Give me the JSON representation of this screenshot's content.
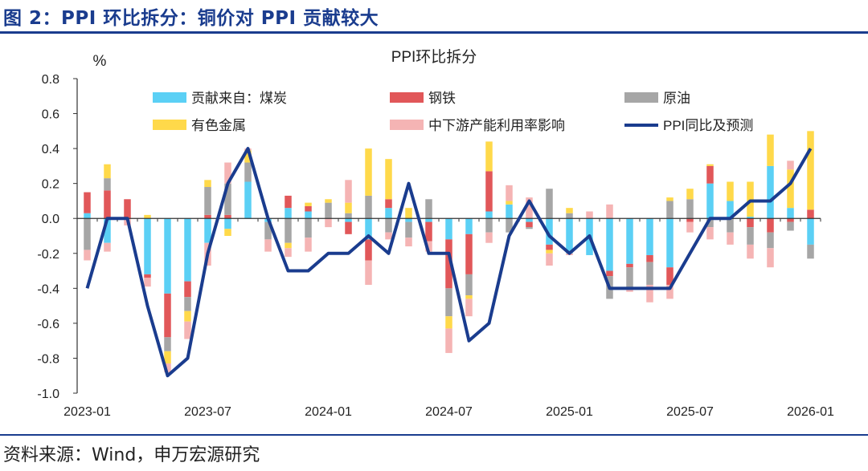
{
  "header": {
    "title": "图 2：PPI 环比拆分：铜价对 PPI 贡献较大"
  },
  "footer": {
    "source": "资料来源：Wind，申万宏源研究"
  },
  "colors": {
    "coal": "#5bd0f5",
    "steel": "#e15759",
    "oil": "#a6a6a6",
    "nonferrous": "#ffd94a",
    "capacity": "#f5b4b4",
    "ppi_line": "#1a3c8e",
    "rule": "#1a3c8e"
  },
  "chart_data": {
    "type": "bar",
    "stacked": true,
    "title": "PPI环比拆分",
    "ylabel": "%",
    "xlabel": "",
    "ylim": [
      -1.0,
      0.8
    ],
    "yticks": [
      "0.8",
      "0.6",
      "0.4",
      "0.2",
      "0.0",
      "-0.2",
      "-0.4",
      "-0.6",
      "-0.8",
      "-1.0"
    ],
    "grid": false,
    "legend_position": "top",
    "x_tick_labels": [
      {
        "index": 0,
        "label": "2023-01"
      },
      {
        "index": 6,
        "label": "2023-07"
      },
      {
        "index": 12,
        "label": "2024-01"
      },
      {
        "index": 18,
        "label": "2024-07"
      },
      {
        "index": 24,
        "label": "2025-01"
      },
      {
        "index": 30,
        "label": "2025-07"
      },
      {
        "index": 36,
        "label": "2026-01"
      }
    ],
    "categories": [
      "2023-01",
      "2023-02",
      "2023-03",
      "2023-04",
      "2023-05",
      "2023-06",
      "2023-07",
      "2023-08",
      "2023-09",
      "2023-10",
      "2023-11",
      "2023-12",
      "2024-01",
      "2024-02",
      "2024-03",
      "2024-04",
      "2024-05",
      "2024-06",
      "2024-07",
      "2024-08",
      "2024-09",
      "2024-10",
      "2024-11",
      "2024-12",
      "2025-01",
      "2025-02",
      "2025-03",
      "2025-04",
      "2025-05",
      "2025-06",
      "2025-07",
      "2025-08",
      "2025-09",
      "2025-10",
      "2025-11",
      "2025-12",
      "2026-01"
    ],
    "series": [
      {
        "name": "贡献来自：煤炭",
        "color_key": "coal",
        "values": [
          0.03,
          -0.14,
          0.0,
          -0.32,
          -0.43,
          -0.36,
          -0.14,
          -0.06,
          0.21,
          -0.02,
          0.06,
          0.04,
          0.0,
          -0.02,
          -0.12,
          0.06,
          -0.02,
          -0.02,
          -0.12,
          -0.09,
          0.04,
          0.08,
          -0.02,
          -0.15,
          -0.2,
          -0.21,
          -0.3,
          -0.26,
          -0.21,
          -0.28,
          0.0,
          0.2,
          0.1,
          0.01,
          0.3,
          0.06,
          -0.15
        ]
      },
      {
        "name": "钢铁",
        "color_key": "steel",
        "values": [
          0.12,
          0.16,
          0.11,
          -0.02,
          -0.25,
          -0.09,
          0.02,
          0.02,
          0.0,
          0.0,
          0.07,
          0.03,
          0.0,
          -0.07,
          -0.12,
          0.05,
          0.0,
          -0.11,
          -0.28,
          -0.23,
          0.23,
          0.0,
          -0.03,
          -0.03,
          0.0,
          0.0,
          -0.03,
          -0.02,
          -0.04,
          -0.1,
          -0.02,
          0.1,
          0.0,
          -0.05,
          -0.08,
          -0.02,
          0.05
        ]
      },
      {
        "name": "原油",
        "color_key": "oil",
        "values": [
          -0.18,
          0.07,
          0.0,
          0.0,
          -0.08,
          -0.08,
          0.16,
          0.18,
          0.11,
          -0.1,
          -0.14,
          -0.11,
          0.09,
          0.03,
          0.13,
          -0.08,
          -0.09,
          0.11,
          -0.16,
          -0.12,
          -0.08,
          -0.08,
          -0.01,
          0.17,
          0.03,
          0.0,
          -0.13,
          -0.12,
          -0.13,
          0.1,
          0.11,
          -0.05,
          -0.08,
          -0.1,
          -0.09,
          -0.05,
          -0.08
        ]
      },
      {
        "name": "有色金属",
        "color_key": "nonferrous",
        "values": [
          0.0,
          0.08,
          0.0,
          0.02,
          -0.07,
          -0.06,
          0.04,
          -0.04,
          0.07,
          0.0,
          -0.03,
          0.02,
          0.02,
          0.06,
          0.27,
          0.23,
          0.06,
          0.0,
          -0.07,
          -0.02,
          0.17,
          0.02,
          0.0,
          -0.02,
          0.03,
          0.0,
          0.0,
          0.0,
          0.0,
          0.02,
          0.06,
          0.01,
          0.11,
          0.2,
          0.18,
          0.22,
          0.45
        ]
      },
      {
        "name": "中下游产能利用率影响",
        "color_key": "capacity",
        "values": [
          -0.06,
          -0.05,
          -0.04,
          -0.05,
          -0.05,
          -0.1,
          -0.13,
          0.12,
          0.01,
          -0.07,
          -0.05,
          -0.08,
          -0.05,
          0.13,
          -0.14,
          -0.04,
          -0.05,
          -0.06,
          -0.14,
          -0.1,
          -0.06,
          0.09,
          0.12,
          -0.07,
          -0.01,
          0.04,
          0.08,
          -0.02,
          -0.1,
          -0.08,
          -0.06,
          -0.07,
          -0.07,
          -0.08,
          -0.11,
          0.05,
          0.0
        ]
      }
    ],
    "line": {
      "name": "PPI同比及预测",
      "color_key": "ppi_line",
      "values": [
        -0.4,
        0.0,
        0.0,
        -0.5,
        -0.9,
        -0.8,
        -0.2,
        0.2,
        0.4,
        0.0,
        -0.3,
        -0.3,
        -0.2,
        -0.2,
        -0.1,
        -0.2,
        0.2,
        -0.2,
        -0.2,
        -0.7,
        -0.6,
        -0.1,
        0.1,
        -0.1,
        -0.2,
        -0.1,
        -0.4,
        -0.4,
        -0.4,
        -0.4,
        -0.2,
        0.0,
        0.0,
        0.1,
        0.1,
        0.2,
        0.4
      ]
    }
  }
}
